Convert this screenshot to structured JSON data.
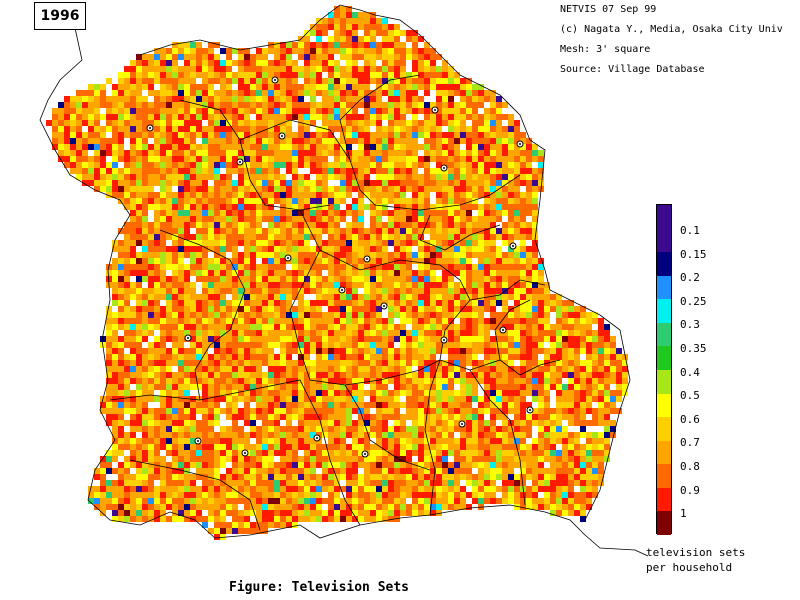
{
  "year": "1996",
  "meta": {
    "line1": "NETVIS 07 Sep 99",
    "line2": "(c) Nagata Y., Media, Osaka City Univ",
    "line3": "Mesh:  3' square",
    "line4": "Source:  Village Database"
  },
  "legend": {
    "labels": [
      "0.1",
      "0.15",
      "0.2",
      "0.25",
      "0.3",
      "0.35",
      "0.4",
      "0.5",
      "0.6",
      "0.7",
      "0.8",
      "0.9",
      "1"
    ],
    "colors": [
      "#3b0a8f",
      "#00007f",
      "#1e90ff",
      "#00f0f0",
      "#2ecc71",
      "#1ec81e",
      "#a8e61a",
      "#ffff00",
      "#ffd000",
      "#ffa500",
      "#ff6a00",
      "#ff1a00",
      "#7f0000"
    ],
    "unit_line1": "television sets",
    "unit_line2": "per household"
  },
  "caption": "Figure: Television Sets"
}
